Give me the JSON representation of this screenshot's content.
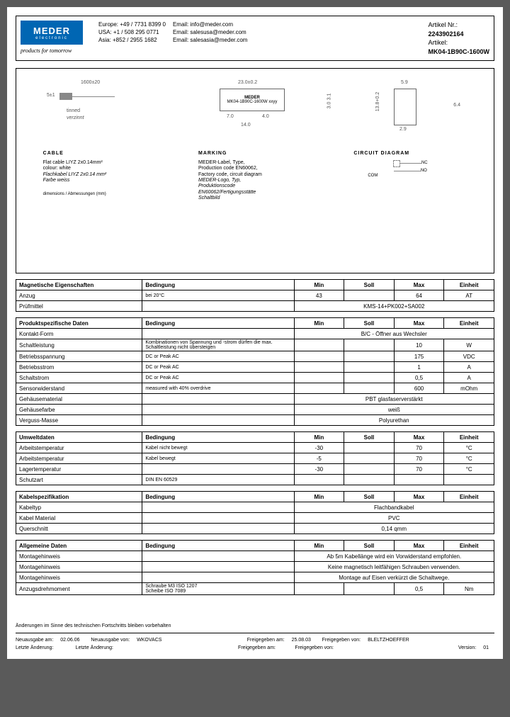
{
  "header": {
    "logo_main": "MEDER",
    "logo_sub": "electronic",
    "tagline": "products for tomorrow",
    "contacts_phone": [
      "Europe: +49 / 7731 8399 0",
      "USA:    +1 / 508 295 0771",
      "Asia:   +852 / 2955 1682"
    ],
    "contacts_email": [
      "Email: info@meder.com",
      "Email: salesusa@meder.com",
      "Email: salesasia@meder.com"
    ],
    "artikel_nr_label": "Artikel Nr.:",
    "artikel_nr": "2243902164",
    "artikel_label": "Artikel:",
    "artikel": "MK04-1B90C-1600W"
  },
  "diagram": {
    "dims": {
      "len1": "1600±20",
      "len2": "23.0±0.2",
      "h1": "5±1",
      "h2": "3.1",
      "h3": "3.0",
      "w1": "7.0",
      "w2": "4.0",
      "w3": "14.0",
      "tinned": "tinned",
      "tinned_it": "verzinnt",
      "side_w": "5.9",
      "side_h": "13.8+0.2",
      "side_h2": "6.4",
      "side_w2": "2.9"
    },
    "comp_label1": "MEDER",
    "comp_label2": "MK04-1B90C-1600W xxyy",
    "cable_title": "CABLE",
    "cable_l1": "Flat cable LIYZ 2x0.14mm²",
    "cable_l2": "colour: white",
    "cable_l3": "Flachkabel LIYZ 2x0.14 mm²",
    "cable_l4": "Farbe weiss",
    "marking_title": "MARKING",
    "marking_l1": "MEDER-Label, Type,",
    "marking_l2": "Production code EN60062,",
    "marking_l3": "Factory code, circuit diagram",
    "marking_l4": "MEDER-Logo, Typ,",
    "marking_l5": "Produktionscode",
    "marking_l6": "EN60062/Fertigungsstätte",
    "marking_l7": "Schaltbild",
    "circuit_title": "CIRCUIT DIAGRAM",
    "circuit_nc": "NC",
    "circuit_no": "NO",
    "circuit_com": "COM",
    "dim_note": "dimensions / Abmessungen (mm)"
  },
  "tables": {
    "magnetische": {
      "title": "Magnetische Eigenschaften",
      "headers": [
        "Bedingung",
        "Min",
        "Soll",
        "Max",
        "Einheit"
      ],
      "rows": [
        {
          "param": "Anzug",
          "cond": "bei 20°C",
          "min": "43",
          "soll": "",
          "max": "64",
          "einheit": "AT"
        },
        {
          "param": "Prüfmittel",
          "cond": "",
          "span": "KMS-14+PK002+SA002"
        }
      ]
    },
    "produkt": {
      "title": "Produktspezifische Daten",
      "headers": [
        "Bedingung",
        "Min",
        "Soll",
        "Max",
        "Einheit"
      ],
      "rows": [
        {
          "param": "Kontakt-Form",
          "cond": "",
          "span": "B/C - Öffner aus Wechsler"
        },
        {
          "param": "Schaltleistung",
          "cond": "Kombinationen von Spannung und -strom dürfen die max. Schaltleistung nicht übersteigen",
          "min": "",
          "soll": "",
          "max": "10",
          "einheit": "W"
        },
        {
          "param": "Betriebsspannung",
          "cond": "DC or Peak AC",
          "min": "",
          "soll": "",
          "max": "175",
          "einheit": "VDC"
        },
        {
          "param": "Betriebsstrom",
          "cond": "DC or Peak AC",
          "min": "",
          "soll": "",
          "max": "1",
          "einheit": "A"
        },
        {
          "param": "Schaltstrom",
          "cond": "DC or Peak AC",
          "min": "",
          "soll": "",
          "max": "0,5",
          "einheit": "A"
        },
        {
          "param": "Sensorwiderstand",
          "cond": "measured with 40% overdrive",
          "min": "",
          "soll": "",
          "max": "600",
          "einheit": "mOhm"
        },
        {
          "param": "Gehäusematerial",
          "cond": "",
          "span": "PBT glasfaserverstärkt"
        },
        {
          "param": "Gehäusefarbe",
          "cond": "",
          "span": "weiß"
        },
        {
          "param": "Verguss-Masse",
          "cond": "",
          "span": "Polyurethan"
        }
      ]
    },
    "umwelt": {
      "title": "Umweltdaten",
      "headers": [
        "Bedingung",
        "Min",
        "Soll",
        "Max",
        "Einheit"
      ],
      "rows": [
        {
          "param": "Arbeitstemperatur",
          "cond": "Kabel nicht bewegt",
          "min": "-30",
          "soll": "",
          "max": "70",
          "einheit": "°C"
        },
        {
          "param": "Arbeitstemperatur",
          "cond": "Kabel bewegt",
          "min": "-5",
          "soll": "",
          "max": "70",
          "einheit": "°C"
        },
        {
          "param": "Lagertemperatur",
          "cond": "",
          "min": "-30",
          "soll": "",
          "max": "70",
          "einheit": "°C"
        },
        {
          "param": "Schutzart",
          "cond": "DIN EN 60529",
          "min": "",
          "soll": "",
          "max": "",
          "einheit": ""
        }
      ]
    },
    "kabel": {
      "title": "Kabelspezifikation",
      "headers": [
        "Bedingung",
        "Min",
        "Soll",
        "Max",
        "Einheit"
      ],
      "rows": [
        {
          "param": "Kabeltyp",
          "cond": "",
          "span": "Flachbandkabel"
        },
        {
          "param": "Kabel Material",
          "cond": "",
          "span": "PVC"
        },
        {
          "param": "Querschnitt",
          "cond": "",
          "span": "0,14 qmm"
        }
      ]
    },
    "allgemeine": {
      "title": "Allgemeine Daten",
      "headers": [
        "Bedingung",
        "Min",
        "Soll",
        "Max",
        "Einheit"
      ],
      "rows": [
        {
          "param": "Montagehinweis",
          "cond": "",
          "span": "Ab 5m Kabellänge wird ein Vorwiderstand empfohlen."
        },
        {
          "param": "Montagehinweis",
          "cond": "",
          "span": "Keine magnetisch leitfähigen Schrauben verwenden."
        },
        {
          "param": "Montagehinweis",
          "cond": "",
          "span": "Montage auf Eisen verkürzt die Schaltwege."
        },
        {
          "param": "Anzugsdrehmoment",
          "cond": "Schraube M3 ISO 1207\nScheibe ISO 7089",
          "min": "",
          "soll": "",
          "max": "0,5",
          "einheit": "Nm"
        }
      ]
    }
  },
  "footer": {
    "disclaimer": "Änderungen im Sinne des technischen Fortschritts bleiben vorbehalten",
    "neuausgabe_label": "Neuausgabe am:",
    "neuausgabe_date": "02.06.06",
    "neuausgabe_von_label": "Neuausgabe von:",
    "neuausgabe_von": "WKOVACS",
    "freigegeben_label": "Freigegeben am:",
    "freigegeben_date": "25.08.03",
    "freigegeben_von_label": "Freigegeben von:",
    "freigegeben_von": "BLELTZHOEFFER",
    "letzte_label": "Letzte Änderung:",
    "letzte2_label": "Letzte Änderung:",
    "freigegeben2_label": "Freigegeben am:",
    "freigegeben2_von_label": "Freigegeben von:",
    "version_label": "Version:",
    "version": "01"
  }
}
